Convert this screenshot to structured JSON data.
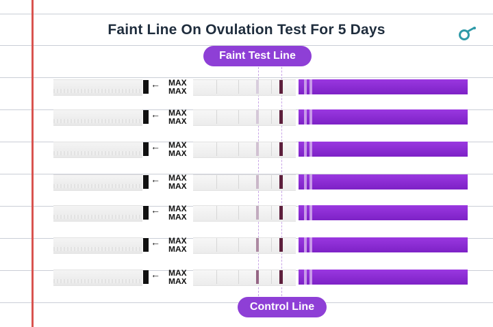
{
  "title": "Faint Line On Ovulation Test For 5 Days",
  "labels": {
    "faint_test_line": "Faint Test Line",
    "control_line": "Control Line"
  },
  "strip_marking": "MAX",
  "logo_icon": "female-symbol-icon",
  "colors": {
    "accent_purple": "#8e3fd6",
    "title_text": "#1f2d3d",
    "margin_line": "#d9534f",
    "logo": "#2f9aa8"
  },
  "strips": [
    {
      "test_line_intensity": 0.05
    },
    {
      "test_line_intensity": 0.08
    },
    {
      "test_line_intensity": 0.12
    },
    {
      "test_line_intensity": 0.18
    },
    {
      "test_line_intensity": 0.25
    },
    {
      "test_line_intensity": 0.45
    },
    {
      "test_line_intensity": 0.65
    }
  ]
}
